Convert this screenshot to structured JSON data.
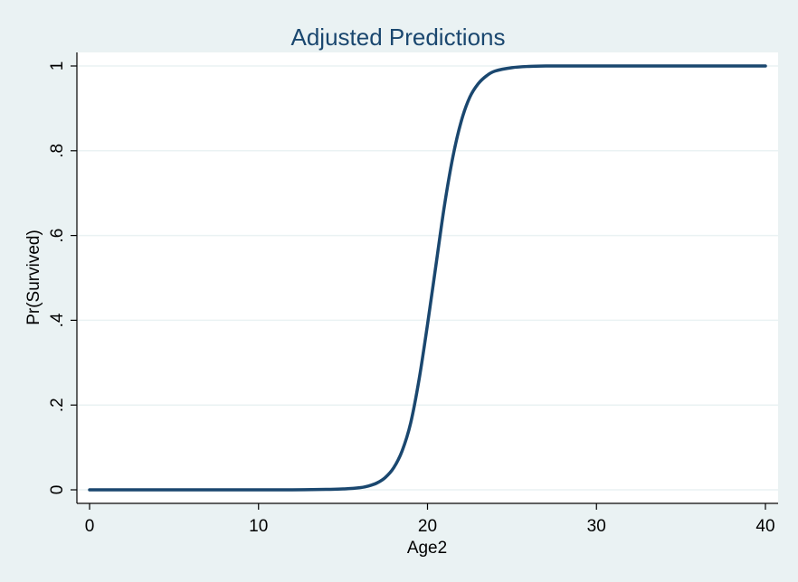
{
  "chart_data": {
    "type": "line",
    "title": "Adjusted Predictions",
    "xlabel": "Age2",
    "ylabel": "Pr(Survived)",
    "xlim": [
      0,
      40
    ],
    "ylim": [
      0,
      1
    ],
    "xticks": [
      0,
      10,
      20,
      30,
      40
    ],
    "xtick_labels": [
      "0",
      "10",
      "20",
      "30",
      "40"
    ],
    "yticks": [
      0,
      0.2,
      0.4,
      0.6,
      0.8,
      1
    ],
    "ytick_labels": [
      "0",
      ".2",
      ".4",
      ".6",
      ".8",
      "1"
    ],
    "grid": true,
    "series": [
      {
        "color": "#1a476f",
        "x": [
          0,
          2,
          4,
          6,
          8,
          10,
          12,
          14,
          15,
          16,
          16.5,
          17,
          17.5,
          18,
          18.5,
          19,
          19.5,
          20,
          20.5,
          21,
          21.5,
          22,
          22.5,
          23,
          23.5,
          24,
          25,
          26,
          27,
          28,
          30,
          32,
          34,
          36,
          38,
          40
        ],
        "y": [
          0,
          0,
          0,
          0,
          0,
          0,
          0,
          0.001,
          0.002,
          0.005,
          0.009,
          0.016,
          0.029,
          0.052,
          0.092,
          0.157,
          0.26,
          0.39,
          0.53,
          0.67,
          0.785,
          0.87,
          0.926,
          0.958,
          0.977,
          0.988,
          0.996,
          0.999,
          1,
          1,
          1,
          1,
          1,
          1,
          1,
          1
        ]
      }
    ]
  },
  "colors": {
    "background": "#eaf2f3",
    "plot_background": "#ffffff",
    "line": "#1a476f"
  }
}
